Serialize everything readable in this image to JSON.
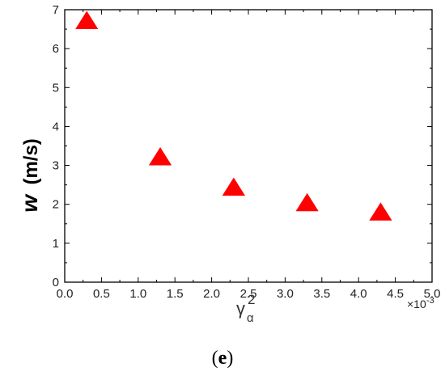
{
  "chart_data": {
    "type": "scatter",
    "x": [
      0.3,
      1.3,
      2.3,
      3.3,
      4.3
    ],
    "y": [
      6.7,
      3.2,
      2.42,
      2.02,
      1.78
    ],
    "xlim": [
      0.0,
      5.0
    ],
    "ylim": [
      0,
      7
    ],
    "x_ticks": [
      "0.0",
      "0.5",
      "1.0",
      "1.5",
      "2.0",
      "2.5",
      "3.0",
      "3.5",
      "4.0",
      "4.5",
      "5.0"
    ],
    "y_ticks": [
      "0",
      "1",
      "2",
      "3",
      "4",
      "5",
      "6",
      "7"
    ],
    "x_multiplier": {
      "base": "×10",
      "exponent": "-3"
    },
    "xlabel": {
      "main": "γ",
      "sup": "2",
      "sub": "α"
    },
    "ylabel": {
      "var": "w",
      "unit": "(m/s)"
    },
    "marker": "triangle",
    "marker_color": "#ff0000",
    "grid": false,
    "panel_label": {
      "open": "(",
      "letter": "e",
      "close": ")"
    }
  }
}
